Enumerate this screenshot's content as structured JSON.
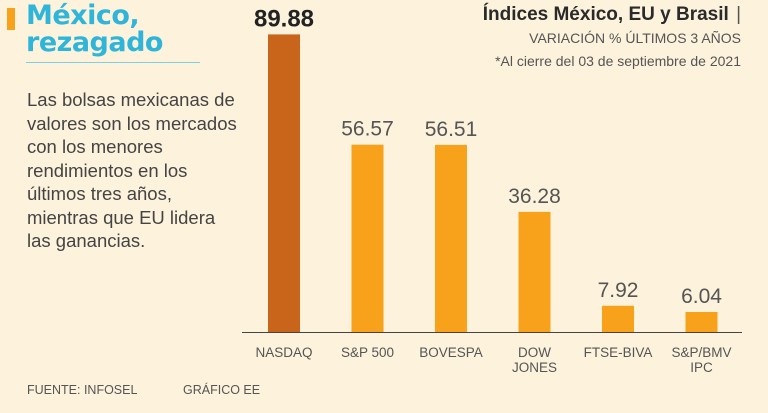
{
  "headline": {
    "line1": "México,",
    "line2": "rezagado"
  },
  "body_text": "Las bolsas mexicanas de valores son los mercados con los menores rendimientos en los últimos tres años, mientras que EU lidera las ganancias.",
  "chart_data": {
    "type": "bar",
    "title": "Índices México, EU y Brasil",
    "title_suffix": "|",
    "subtitle": "VARIACIÓN % ÚLTIMOS 3 AÑOS",
    "note": "*Al cierre del 03 de septiembre de 2021",
    "categories": [
      [
        "NASDAQ"
      ],
      [
        "S&P 500"
      ],
      [
        "BOVESPA"
      ],
      [
        "DOW",
        "JONES"
      ],
      [
        "FTSE-BIVA"
      ],
      [
        "S&P/BMV",
        "IPC"
      ]
    ],
    "values": [
      89.88,
      56.57,
      56.51,
      36.28,
      7.92,
      6.04
    ],
    "value_labels": [
      "89.88",
      "56.57",
      "56.51",
      "36.28",
      "7.92",
      "6.04"
    ],
    "highlight_index": 0,
    "ylim": [
      0,
      90
    ],
    "xlabel": "",
    "ylabel": "",
    "colors": {
      "bar": "#f7a21a",
      "highlight": "#c9651a",
      "axis": "#444444",
      "label": "#555555",
      "highlight_label": "#222222"
    }
  },
  "footer": {
    "source": "FUENTE: INFOSEL",
    "credit": "GRÁFICO EE"
  }
}
